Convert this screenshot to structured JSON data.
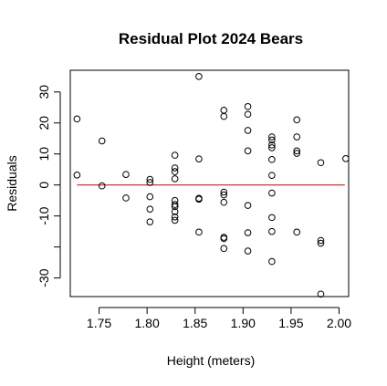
{
  "chart_data": {
    "type": "scatter",
    "title": "Residual Plot 2024 Bears",
    "xlabel": "Height (meters)",
    "ylabel": "Residuals",
    "xlim": [
      1.72,
      2.01
    ],
    "ylim": [
      -36,
      37
    ],
    "x_ticks": [
      1.75,
      1.8,
      1.85,
      1.9,
      1.95,
      2.0
    ],
    "x_tick_labels": [
      "1.75",
      "1.80",
      "1.85",
      "1.90",
      "1.95",
      "2.00"
    ],
    "y_ticks": [
      -30,
      -20,
      -10,
      0,
      10,
      20,
      30
    ],
    "y_tick_labels": [
      "-30",
      "",
      "-10",
      "0",
      "10",
      "20",
      "30"
    ],
    "grid": false,
    "reference_line": {
      "y": 0,
      "x_from": 1.727,
      "x_to": 2.006,
      "color": "#cc0000"
    },
    "marker": "open-circle",
    "points": [
      [
        1.727,
        21.3
      ],
      [
        1.727,
        3.2
      ],
      [
        1.753,
        14.2
      ],
      [
        1.753,
        -0.3
      ],
      [
        1.778,
        3.4
      ],
      [
        1.778,
        -4.2
      ],
      [
        1.803,
        1.8
      ],
      [
        1.803,
        0.8
      ],
      [
        1.803,
        -3.8
      ],
      [
        1.803,
        -7.8
      ],
      [
        1.803,
        -11.9
      ],
      [
        1.829,
        9.6
      ],
      [
        1.829,
        5.5
      ],
      [
        1.829,
        4.3
      ],
      [
        1.829,
        2.0
      ],
      [
        1.829,
        -5.0
      ],
      [
        1.829,
        -6.3
      ],
      [
        1.829,
        -7.0
      ],
      [
        1.829,
        -8.6
      ],
      [
        1.829,
        -10.3
      ],
      [
        1.829,
        -11.4
      ],
      [
        1.854,
        35.0
      ],
      [
        1.854,
        8.4
      ],
      [
        1.854,
        -4.3
      ],
      [
        1.854,
        -4.6
      ],
      [
        1.854,
        -15.2
      ],
      [
        1.88,
        24.1
      ],
      [
        1.88,
        22.1
      ],
      [
        1.88,
        -2.3
      ],
      [
        1.88,
        -3.2
      ],
      [
        1.88,
        -5.6
      ],
      [
        1.88,
        -16.9
      ],
      [
        1.88,
        -17.3
      ],
      [
        1.88,
        -20.5
      ],
      [
        1.905,
        25.3
      ],
      [
        1.905,
        22.8
      ],
      [
        1.905,
        17.6
      ],
      [
        1.905,
        11.0
      ],
      [
        1.905,
        -6.6
      ],
      [
        1.905,
        -15.4
      ],
      [
        1.905,
        -21.3
      ],
      [
        1.93,
        15.5
      ],
      [
        1.93,
        14.5
      ],
      [
        1.93,
        12.9
      ],
      [
        1.93,
        12.0
      ],
      [
        1.93,
        8.2
      ],
      [
        1.93,
        3.1
      ],
      [
        1.93,
        -2.6
      ],
      [
        1.93,
        -10.5
      ],
      [
        1.93,
        -15.0
      ],
      [
        1.93,
        -24.7
      ],
      [
        1.956,
        21.0
      ],
      [
        1.956,
        15.5
      ],
      [
        1.956,
        11.0
      ],
      [
        1.956,
        10.2
      ],
      [
        1.956,
        -15.2
      ],
      [
        1.981,
        7.2
      ],
      [
        1.981,
        -17.9
      ],
      [
        1.981,
        -18.8
      ],
      [
        1.981,
        -35.2
      ],
      [
        2.007,
        8.5
      ]
    ]
  }
}
